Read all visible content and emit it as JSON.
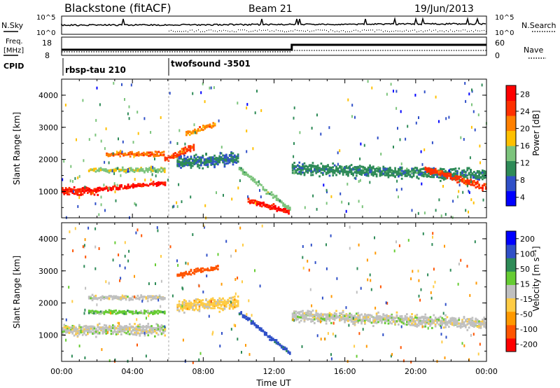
{
  "header": {
    "title": "Blackstone (fitACF)",
    "beam": "Beam 21",
    "date": "19/Jun/2013"
  },
  "sky_panel": {
    "left_label": "N.Sky",
    "right_label": "N.Search",
    "y_ticks_left": [
      "10^5",
      "10^0"
    ],
    "y_ticks_right": [
      "10^5",
      "10^0"
    ]
  },
  "freq_panel": {
    "label_line1": "Freq.",
    "label_line2": "[MHz]",
    "y_ticks": [
      "18",
      "8"
    ],
    "right_label": "Nave",
    "right_ticks": [
      "60",
      "0"
    ]
  },
  "cpid": {
    "label": "CPID",
    "programs": [
      {
        "name": "rbsp-tau 210",
        "start_hour": 0
      },
      {
        "name": "twofsound -3501",
        "start_hour": 6
      }
    ]
  },
  "chart_data": [
    {
      "type": "heatmap",
      "title": "",
      "xlabel": "Time UT",
      "ylabel": "Slant Range [km]",
      "xlim": [
        0,
        24
      ],
      "ylim": [
        180,
        4500
      ],
      "x_ticks": [
        "00:00",
        "04:00",
        "08:00",
        "12:00",
        "16:00",
        "20:00",
        "00:00"
      ],
      "y_ticks": [
        "1000",
        "2000",
        "3000",
        "4000"
      ],
      "colorbar": {
        "label": "Power [dB]",
        "ticks": [
          "28",
          "24",
          "20",
          "16",
          "12",
          "8",
          "4"
        ],
        "range": [
          0,
          30
        ],
        "colors": [
          "#0000ff",
          "#3050c8",
          "#2e8b57",
          "#7cc47c",
          "#ffc000",
          "#ff8000",
          "#ff3000",
          "#ff0000"
        ]
      },
      "bands": [
        {
          "t0": 0.0,
          "t1": 2.0,
          "r0": 1000,
          "r1": 1000,
          "width": 330,
          "power": 26
        },
        {
          "t0": 2.0,
          "t1": 5.8,
          "r0": 1050,
          "r1": 1250,
          "width": 180,
          "power": 27
        },
        {
          "t0": 1.5,
          "t1": 5.8,
          "r0": 1650,
          "r1": 1650,
          "width": 180,
          "power": 14
        },
        {
          "t0": 2.5,
          "t1": 5.8,
          "r0": 2150,
          "r1": 2150,
          "width": 200,
          "power": 22
        },
        {
          "t0": 5.8,
          "t1": 7.5,
          "r0": 2000,
          "r1": 2400,
          "width": 260,
          "power": 24
        },
        {
          "t0": 6.5,
          "t1": 10.0,
          "r0": 1900,
          "r1": 2000,
          "width": 500,
          "power": 8
        },
        {
          "t0": 7.0,
          "t1": 8.7,
          "r0": 2800,
          "r1": 3100,
          "width": 200,
          "power": 20
        },
        {
          "t0": 10.0,
          "t1": 12.9,
          "r0": 1700,
          "r1": 400,
          "width": 200,
          "power": 13
        },
        {
          "t0": 10.5,
          "t1": 12.8,
          "r0": 700,
          "r1": 350,
          "width": 220,
          "power": 27
        },
        {
          "t0": 13.0,
          "t1": 24.0,
          "r0": 1700,
          "r1": 1500,
          "width": 450,
          "power": 9
        },
        {
          "t0": 20.5,
          "t1": 24.0,
          "r0": 1700,
          "r1": 1100,
          "width": 260,
          "power": 24
        }
      ]
    },
    {
      "type": "heatmap",
      "title": "",
      "xlabel": "Time UT",
      "ylabel": "Slant Range [km]",
      "xlim": [
        0,
        24
      ],
      "ylim": [
        180,
        4500
      ],
      "x_ticks": [
        "00:00",
        "04:00",
        "08:00",
        "12:00",
        "16:00",
        "20:00",
        "00:00"
      ],
      "y_ticks": [
        "1000",
        "2000",
        "3000",
        "4000"
      ],
      "colorbar": {
        "label": "Velocity [m s⁻¹]",
        "ticks": [
          "200",
          "100",
          "50",
          "15",
          "-15",
          "-50",
          "-100",
          "-200"
        ],
        "range": [
          -250,
          250
        ],
        "colors": [
          "#ff0000",
          "#ff5500",
          "#ff9900",
          "#ffcc44",
          "#c0c0c0",
          "#66cc33",
          "#2e8b57",
          "#3050c8",
          "#0000ff"
        ]
      },
      "bands": [
        {
          "t0": 0.0,
          "t1": 5.8,
          "r0": 1150,
          "r1": 1150,
          "width": 430,
          "velocity": 0
        },
        {
          "t0": 1.5,
          "t1": 5.8,
          "r0": 2150,
          "r1": 2150,
          "width": 200,
          "velocity": 0
        },
        {
          "t0": 1.5,
          "t1": 5.8,
          "r0": 1700,
          "r1": 1700,
          "width": 160,
          "velocity": 30
        },
        {
          "t0": 6.5,
          "t1": 10.0,
          "r0": 1900,
          "r1": 2000,
          "width": 500,
          "velocity": -30
        },
        {
          "t0": 6.5,
          "t1": 8.8,
          "r0": 2850,
          "r1": 3100,
          "width": 200,
          "velocity": -150
        },
        {
          "t0": 10.0,
          "t1": 12.9,
          "r0": 1700,
          "r1": 400,
          "width": 200,
          "velocity": 120
        },
        {
          "t0": 13.0,
          "t1": 24.0,
          "r0": 1600,
          "r1": 1350,
          "width": 450,
          "velocity": 0
        }
      ]
    }
  ]
}
